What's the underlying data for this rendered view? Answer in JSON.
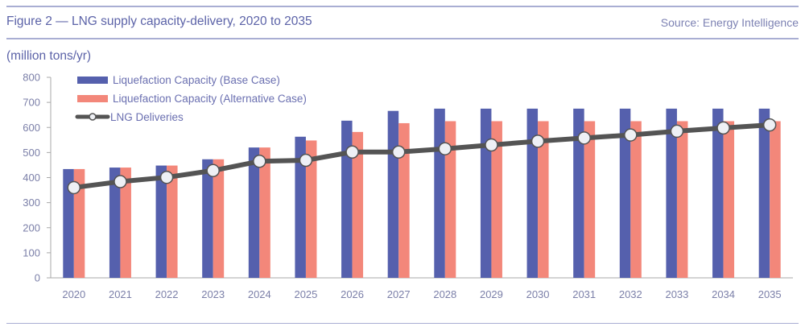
{
  "figure": {
    "title": "Figure 2 — LNG supply capacity-delivery, 2020 to 2035",
    "source": "Source: Energy Intelligence",
    "unit_label": "(million tons/yr)"
  },
  "colors": {
    "base": "#5560ad",
    "alternative": "#f3877a",
    "deliveries_line": "#545454",
    "marker_fill": "#eef0f5",
    "axis": "#a8a8a8",
    "rule": "#a9aed3"
  },
  "chart_data": {
    "type": "bar",
    "title": "LNG supply capacity-delivery, 2020 to 2035",
    "xlabel": "",
    "ylabel": "(million tons/yr)",
    "ylim": [
      0,
      800
    ],
    "yticks": [
      0,
      100,
      200,
      300,
      400,
      500,
      600,
      700,
      800
    ],
    "grid": false,
    "legend_position": "top-left",
    "categories": [
      "2020",
      "2021",
      "2022",
      "2023",
      "2024",
      "2025",
      "2026",
      "2027",
      "2028",
      "2029",
      "2030",
      "2031",
      "2032",
      "2033",
      "2034",
      "2035"
    ],
    "series": [
      {
        "name": "Liquefaction Capacity (Base Case)",
        "type": "bar",
        "values": [
          434,
          440,
          448,
          473,
          520,
          563,
          627,
          666,
          675,
          675,
          675,
          675,
          675,
          675,
          675,
          675
        ]
      },
      {
        "name": "Liquefaction Capacity (Alternative Case)",
        "type": "bar",
        "values": [
          434,
          440,
          448,
          473,
          520,
          548,
          582,
          617,
          625,
          625,
          625,
          625,
          625,
          625,
          625,
          625
        ]
      },
      {
        "name": "LNG Deliveries",
        "type": "line",
        "marker": "circle",
        "values": [
          360,
          384,
          401,
          428,
          465,
          469,
          502,
          502,
          515,
          530,
          545,
          558,
          570,
          585,
          598,
          610
        ]
      }
    ]
  }
}
